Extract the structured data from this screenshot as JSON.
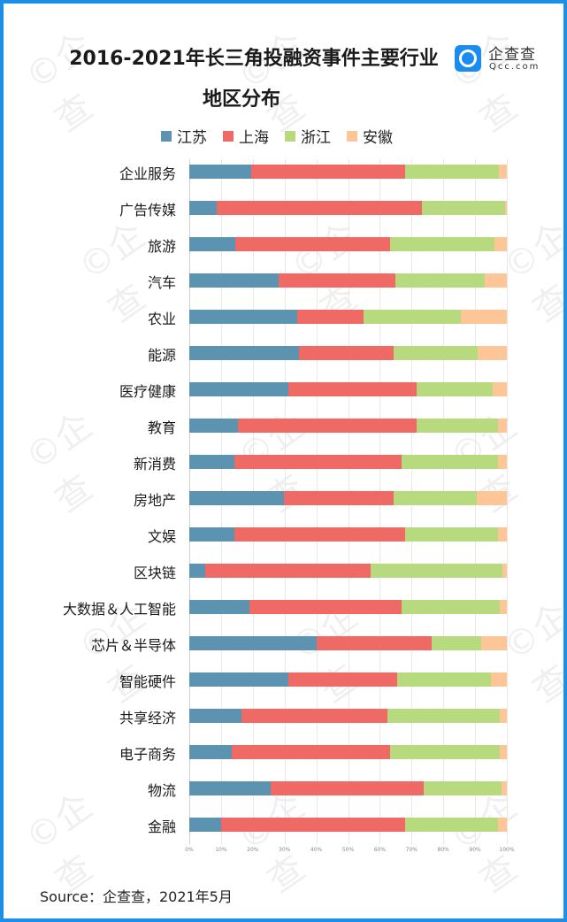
{
  "header": {
    "title_line1": "2016-2021年长三角投融资事件主要行业",
    "title_line2": "地区分布",
    "logo_cn": "企查查",
    "logo_en": "Qcc.com"
  },
  "source": "Source：企查查，2021年5月",
  "colors": {
    "jiangsu": "#5b93b0",
    "shanghai": "#ef6a64",
    "zhejiang": "#b8da7f",
    "anhui": "#fec597"
  },
  "chart_data": {
    "type": "bar",
    "orientation": "horizontal",
    "stacked": "percent",
    "title": "2016-2021年长三角投融资事件主要行业地区分布",
    "xlabel": "",
    "ylabel": "",
    "xlim": [
      0,
      100
    ],
    "x_ticks": [
      "0%",
      "10%",
      "20%",
      "30%",
      "40%",
      "50%",
      "60%",
      "70%",
      "80%",
      "90%",
      "100%"
    ],
    "grid": true,
    "legend_position": "top",
    "legend": [
      "江苏",
      "上海",
      "浙江",
      "安徽"
    ],
    "categories": [
      "企业服务",
      "广告传媒",
      "旅游",
      "汽车",
      "农业",
      "能源",
      "医疗健康",
      "教育",
      "新消费",
      "房地产",
      "文娱",
      "区块链",
      "大数据＆人工智能",
      "芯片＆半导体",
      "智能硬件",
      "共享经济",
      "电子商务",
      "物流",
      "金融"
    ],
    "series": [
      {
        "name": "江苏",
        "color": "#5b93b0",
        "values": [
          19.4,
          8.6,
          14.6,
          28.1,
          34.0,
          34.6,
          31.3,
          15.3,
          14.1,
          29.8,
          14.3,
          5.0,
          19.0,
          40.1,
          31.2,
          16.5,
          13.3,
          25.6,
          10.1
        ]
      },
      {
        "name": "上海",
        "color": "#ef6a64",
        "values": [
          48.7,
          64.6,
          48.7,
          36.7,
          20.9,
          29.8,
          40.2,
          56.2,
          52.8,
          34.6,
          53.7,
          52.2,
          47.9,
          36.2,
          34.4,
          46.0,
          50.0,
          48.2,
          57.9
        ]
      },
      {
        "name": "浙江",
        "color": "#b8da7f",
        "values": [
          29.5,
          26.3,
          32.9,
          28.1,
          30.6,
          26.5,
          24.1,
          25.8,
          30.4,
          26.0,
          29.3,
          41.5,
          30.8,
          15.7,
          29.3,
          35.4,
          34.4,
          24.4,
          29.1
        ]
      },
      {
        "name": "安徽",
        "color": "#fec597",
        "values": [
          2.4,
          0.5,
          3.8,
          7.1,
          14.5,
          9.1,
          4.4,
          2.7,
          2.7,
          9.6,
          2.7,
          1.3,
          2.3,
          8.0,
          5.1,
          2.1,
          2.3,
          1.8,
          2.9
        ]
      }
    ]
  }
}
